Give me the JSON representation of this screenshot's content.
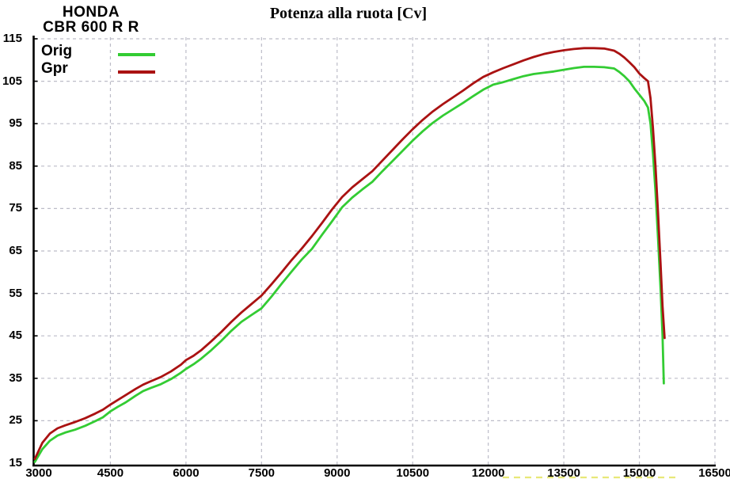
{
  "header": {
    "brand_line1": "HONDA",
    "brand_line2": "CBR 600 R R",
    "title": "Potenza alla ruota  [Cv]"
  },
  "legend": [
    {
      "label": "Orig",
      "color": "#33cc33"
    },
    {
      "label": "Gpr",
      "color": "#aa1212"
    }
  ],
  "colors": {
    "grid": "#bcbcc8",
    "axis": "#000000",
    "text": "#000000",
    "background": "#ffffff",
    "bottom_artifact": "#e8e878"
  },
  "chart_data": {
    "type": "line",
    "title": "Potenza alla ruota [Cv]",
    "xlabel": "",
    "ylabel": "",
    "xlim": [
      3000,
      16500
    ],
    "ylim": [
      15,
      115
    ],
    "x_ticks": [
      3000,
      4500,
      6000,
      7500,
      9000,
      10500,
      12000,
      13500,
      15000,
      16500
    ],
    "y_ticks": [
      15,
      25,
      35,
      45,
      55,
      65,
      75,
      85,
      95,
      105,
      115
    ],
    "grid": true,
    "grid_style": "dashed",
    "legend_position": "top-left",
    "series": [
      {
        "name": "Orig",
        "color": "#33cc33",
        "points": [
          [
            3000,
            15.3
          ],
          [
            3150,
            18.3
          ],
          [
            3300,
            20.3
          ],
          [
            3450,
            21.5
          ],
          [
            3600,
            22.2
          ],
          [
            3800,
            22.9
          ],
          [
            4000,
            23.8
          ],
          [
            4200,
            24.9
          ],
          [
            4350,
            25.8
          ],
          [
            4500,
            27.2
          ],
          [
            4650,
            28.3
          ],
          [
            4800,
            29.3
          ],
          [
            5000,
            30.9
          ],
          [
            5150,
            32.0
          ],
          [
            5300,
            32.7
          ],
          [
            5500,
            33.6
          ],
          [
            5700,
            34.8
          ],
          [
            5900,
            36.3
          ],
          [
            6000,
            37.2
          ],
          [
            6150,
            38.3
          ],
          [
            6300,
            39.6
          ],
          [
            6500,
            41.6
          ],
          [
            6700,
            43.8
          ],
          [
            6900,
            46.2
          ],
          [
            7100,
            48.3
          ],
          [
            7300,
            49.9
          ],
          [
            7500,
            51.5
          ],
          [
            7700,
            54.3
          ],
          [
            7900,
            57.3
          ],
          [
            8100,
            60.2
          ],
          [
            8300,
            63.0
          ],
          [
            8500,
            65.5
          ],
          [
            8700,
            68.8
          ],
          [
            8900,
            72.0
          ],
          [
            9100,
            75.3
          ],
          [
            9300,
            77.6
          ],
          [
            9500,
            79.5
          ],
          [
            9700,
            81.3
          ],
          [
            9900,
            83.8
          ],
          [
            10100,
            86.2
          ],
          [
            10300,
            88.6
          ],
          [
            10500,
            91.0
          ],
          [
            10700,
            93.2
          ],
          [
            10900,
            95.2
          ],
          [
            11100,
            96.9
          ],
          [
            11300,
            98.4
          ],
          [
            11500,
            99.9
          ],
          [
            11700,
            101.5
          ],
          [
            11900,
            103.0
          ],
          [
            12100,
            104.2
          ],
          [
            12300,
            104.8
          ],
          [
            12500,
            105.5
          ],
          [
            12700,
            106.2
          ],
          [
            12900,
            106.7
          ],
          [
            13100,
            107.0
          ],
          [
            13300,
            107.3
          ],
          [
            13500,
            107.7
          ],
          [
            13700,
            108.1
          ],
          [
            13900,
            108.4
          ],
          [
            14100,
            108.4
          ],
          [
            14300,
            108.3
          ],
          [
            14500,
            108.0
          ],
          [
            14600,
            107.2
          ],
          [
            14700,
            106.2
          ],
          [
            14800,
            105.0
          ],
          [
            14900,
            103.3
          ],
          [
            15000,
            101.8
          ],
          [
            15100,
            100.3
          ],
          [
            15170,
            98.8
          ],
          [
            15220,
            95.0
          ],
          [
            15270,
            88.0
          ],
          [
            15320,
            79.0
          ],
          [
            15370,
            68.0
          ],
          [
            15420,
            56.0
          ],
          [
            15460,
            45.0
          ],
          [
            15485,
            33.8
          ]
        ]
      },
      {
        "name": "Gpr",
        "color": "#aa1212",
        "points": [
          [
            3000,
            16.0
          ],
          [
            3150,
            19.8
          ],
          [
            3300,
            22.0
          ],
          [
            3450,
            23.2
          ],
          [
            3600,
            23.9
          ],
          [
            3800,
            24.7
          ],
          [
            4000,
            25.6
          ],
          [
            4200,
            26.7
          ],
          [
            4350,
            27.6
          ],
          [
            4500,
            28.8
          ],
          [
            4650,
            29.9
          ],
          [
            4800,
            31.0
          ],
          [
            5000,
            32.5
          ],
          [
            5150,
            33.5
          ],
          [
            5300,
            34.3
          ],
          [
            5500,
            35.3
          ],
          [
            5700,
            36.6
          ],
          [
            5900,
            38.2
          ],
          [
            6000,
            39.3
          ],
          [
            6150,
            40.3
          ],
          [
            6300,
            41.6
          ],
          [
            6500,
            43.7
          ],
          [
            6700,
            45.9
          ],
          [
            6900,
            48.3
          ],
          [
            7100,
            50.5
          ],
          [
            7300,
            52.5
          ],
          [
            7500,
            54.5
          ],
          [
            7700,
            57.2
          ],
          [
            7900,
            60.0
          ],
          [
            8100,
            62.9
          ],
          [
            8300,
            65.6
          ],
          [
            8500,
            68.5
          ],
          [
            8700,
            71.6
          ],
          [
            8900,
            74.8
          ],
          [
            9100,
            77.7
          ],
          [
            9300,
            80.0
          ],
          [
            9500,
            81.9
          ],
          [
            9700,
            83.8
          ],
          [
            9900,
            86.3
          ],
          [
            10100,
            88.8
          ],
          [
            10300,
            91.3
          ],
          [
            10500,
            93.7
          ],
          [
            10700,
            95.9
          ],
          [
            10900,
            97.9
          ],
          [
            11100,
            99.6
          ],
          [
            11300,
            101.2
          ],
          [
            11500,
            102.8
          ],
          [
            11700,
            104.5
          ],
          [
            11900,
            106.0
          ],
          [
            12100,
            107.1
          ],
          [
            12300,
            108.1
          ],
          [
            12500,
            109.0
          ],
          [
            12700,
            109.9
          ],
          [
            12900,
            110.7
          ],
          [
            13100,
            111.4
          ],
          [
            13300,
            111.9
          ],
          [
            13500,
            112.3
          ],
          [
            13700,
            112.6
          ],
          [
            13900,
            112.8
          ],
          [
            14100,
            112.8
          ],
          [
            14300,
            112.7
          ],
          [
            14500,
            112.2
          ],
          [
            14600,
            111.5
          ],
          [
            14700,
            110.6
          ],
          [
            14800,
            109.5
          ],
          [
            14900,
            108.3
          ],
          [
            15000,
            106.8
          ],
          [
            15100,
            105.7
          ],
          [
            15170,
            105.0
          ],
          [
            15220,
            101.0
          ],
          [
            15270,
            94.0
          ],
          [
            15320,
            85.0
          ],
          [
            15370,
            74.0
          ],
          [
            15420,
            62.0
          ],
          [
            15460,
            52.0
          ],
          [
            15500,
            44.5
          ]
        ]
      }
    ]
  }
}
